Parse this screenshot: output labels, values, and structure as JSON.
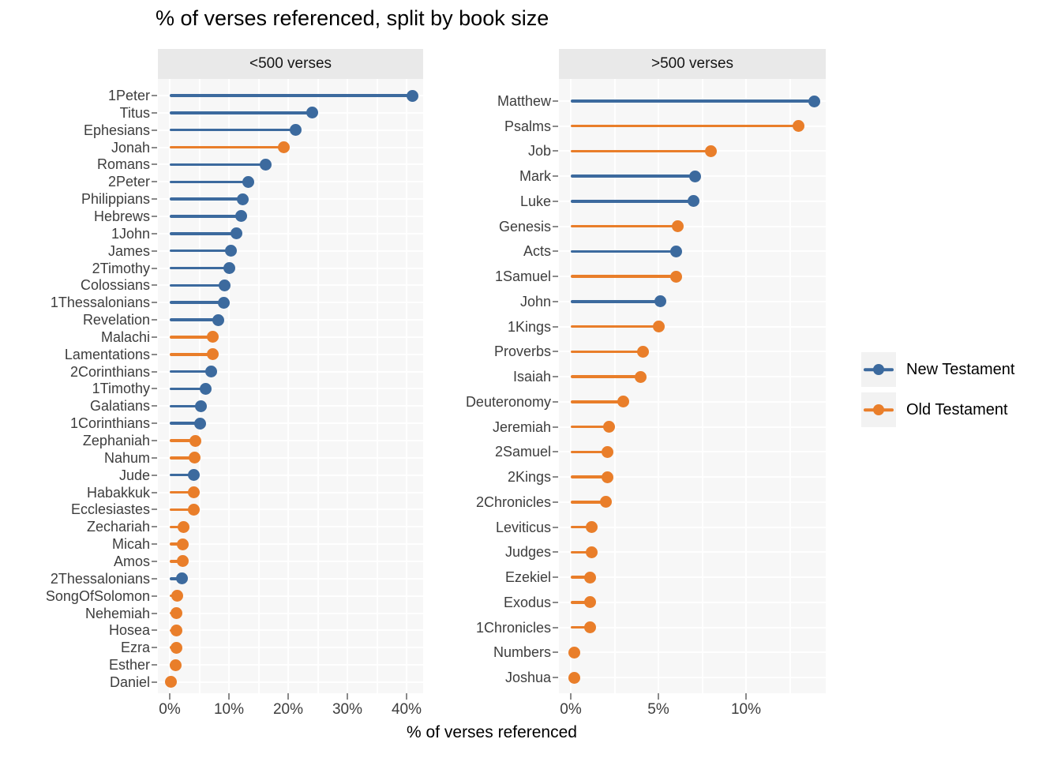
{
  "title": "% of verses referenced, split by book size",
  "x_axis_title": "% of verses referenced",
  "colors": {
    "New Testament": "#3c6a9e",
    "Old Testament": "#e97e2a"
  },
  "legend": {
    "position": "right",
    "items": [
      {
        "label": "New Testament"
      },
      {
        "label": "Old Testament"
      }
    ]
  },
  "chart_data": [
    {
      "type": "bar",
      "style": "horizontal-lollipop",
      "facet_label": "<500 verses",
      "x_axis": {
        "unit": "percent",
        "range": [
          -2,
          42.5
        ],
        "tick_values": [
          0,
          10,
          20,
          30,
          40
        ],
        "tick_labels": [
          "0%",
          "10%",
          "20%",
          "30%",
          "40%"
        ],
        "minor_tick_values": [
          5,
          15,
          25,
          35
        ],
        "grid": "on"
      },
      "points": [
        {
          "book": "1Peter",
          "value": 41.0,
          "group": "New Testament"
        },
        {
          "book": "Titus",
          "value": 24.1,
          "group": "New Testament"
        },
        {
          "book": "Ephesians",
          "value": 21.2,
          "group": "New Testament"
        },
        {
          "book": "Jonah",
          "value": 19.2,
          "group": "Old Testament"
        },
        {
          "book": "Romans",
          "value": 16.2,
          "group": "New Testament"
        },
        {
          "book": "2Peter",
          "value": 13.2,
          "group": "New Testament"
        },
        {
          "book": "Philippians",
          "value": 12.3,
          "group": "New Testament"
        },
        {
          "book": "Hebrews",
          "value": 12.1,
          "group": "New Testament"
        },
        {
          "book": "1John",
          "value": 11.2,
          "group": "New Testament"
        },
        {
          "book": "James",
          "value": 10.3,
          "group": "New Testament"
        },
        {
          "book": "2Timothy",
          "value": 10.1,
          "group": "New Testament"
        },
        {
          "book": "Colossians",
          "value": 9.2,
          "group": "New Testament"
        },
        {
          "book": "1Thessalonians",
          "value": 9.1,
          "group": "New Testament"
        },
        {
          "book": "Revelation",
          "value": 8.2,
          "group": "New Testament"
        },
        {
          "book": "Malachi",
          "value": 7.3,
          "group": "Old Testament"
        },
        {
          "book": "Lamentations",
          "value": 7.2,
          "group": "Old Testament"
        },
        {
          "book": "2Corinthians",
          "value": 7.0,
          "group": "New Testament"
        },
        {
          "book": "1Timothy",
          "value": 6.1,
          "group": "New Testament"
        },
        {
          "book": "Galatians",
          "value": 5.2,
          "group": "New Testament"
        },
        {
          "book": "1Corinthians",
          "value": 5.1,
          "group": "New Testament"
        },
        {
          "book": "Zephaniah",
          "value": 4.3,
          "group": "Old Testament"
        },
        {
          "book": "Nahum",
          "value": 4.2,
          "group": "Old Testament"
        },
        {
          "book": "Jude",
          "value": 4.1,
          "group": "New Testament"
        },
        {
          "book": "Habakkuk",
          "value": 4.1,
          "group": "Old Testament"
        },
        {
          "book": "Ecclesiastes",
          "value": 4.0,
          "group": "Old Testament"
        },
        {
          "book": "Zechariah",
          "value": 2.3,
          "group": "Old Testament"
        },
        {
          "book": "Micah",
          "value": 2.2,
          "group": "Old Testament"
        },
        {
          "book": "Amos",
          "value": 2.2,
          "group": "Old Testament"
        },
        {
          "book": "2Thessalonians",
          "value": 2.1,
          "group": "New Testament"
        },
        {
          "book": "SongOfSolomon",
          "value": 1.2,
          "group": "Old Testament"
        },
        {
          "book": "Nehemiah",
          "value": 1.1,
          "group": "Old Testament"
        },
        {
          "book": "Hosea",
          "value": 1.1,
          "group": "Old Testament"
        },
        {
          "book": "Ezra",
          "value": 1.1,
          "group": "Old Testament"
        },
        {
          "book": "Esther",
          "value": 1.0,
          "group": "Old Testament"
        },
        {
          "book": "Daniel",
          "value": 0.2,
          "group": "Old Testament"
        }
      ]
    },
    {
      "type": "bar",
      "style": "horizontal-lollipop",
      "facet_label": ">500 verses",
      "x_axis": {
        "unit": "percent",
        "range": [
          -0.7,
          14.6
        ],
        "tick_values": [
          0,
          5,
          10
        ],
        "tick_labels": [
          "0%",
          "5%",
          "10%"
        ],
        "minor_tick_values": [
          2.5,
          7.5,
          12.5
        ],
        "grid": "on"
      },
      "points": [
        {
          "book": "Matthew",
          "value": 13.9,
          "group": "New Testament"
        },
        {
          "book": "Psalms",
          "value": 13.0,
          "group": "Old Testament"
        },
        {
          "book": "Job",
          "value": 8.0,
          "group": "Old Testament"
        },
        {
          "book": "Mark",
          "value": 7.1,
          "group": "New Testament"
        },
        {
          "book": "Luke",
          "value": 7.0,
          "group": "New Testament"
        },
        {
          "book": "Genesis",
          "value": 6.1,
          "group": "Old Testament"
        },
        {
          "book": "Acts",
          "value": 6.0,
          "group": "New Testament"
        },
        {
          "book": "1Samuel",
          "value": 6.0,
          "group": "Old Testament"
        },
        {
          "book": "John",
          "value": 5.1,
          "group": "New Testament"
        },
        {
          "book": "1Kings",
          "value": 5.0,
          "group": "Old Testament"
        },
        {
          "book": "Proverbs",
          "value": 4.1,
          "group": "Old Testament"
        },
        {
          "book": "Isaiah",
          "value": 4.0,
          "group": "Old Testament"
        },
        {
          "book": "Deuteronomy",
          "value": 3.0,
          "group": "Old Testament"
        },
        {
          "book": "Jeremiah",
          "value": 2.2,
          "group": "Old Testament"
        },
        {
          "book": "2Samuel",
          "value": 2.1,
          "group": "Old Testament"
        },
        {
          "book": "2Kings",
          "value": 2.1,
          "group": "Old Testament"
        },
        {
          "book": "2Chronicles",
          "value": 2.0,
          "group": "Old Testament"
        },
        {
          "book": "Leviticus",
          "value": 1.2,
          "group": "Old Testament"
        },
        {
          "book": "Judges",
          "value": 1.2,
          "group": "Old Testament"
        },
        {
          "book": "Ezekiel",
          "value": 1.1,
          "group": "Old Testament"
        },
        {
          "book": "Exodus",
          "value": 1.1,
          "group": "Old Testament"
        },
        {
          "book": "1Chronicles",
          "value": 1.1,
          "group": "Old Testament"
        },
        {
          "book": "Numbers",
          "value": 0.2,
          "group": "Old Testament"
        },
        {
          "book": "Joshua",
          "value": 0.2,
          "group": "Old Testament"
        }
      ]
    }
  ]
}
